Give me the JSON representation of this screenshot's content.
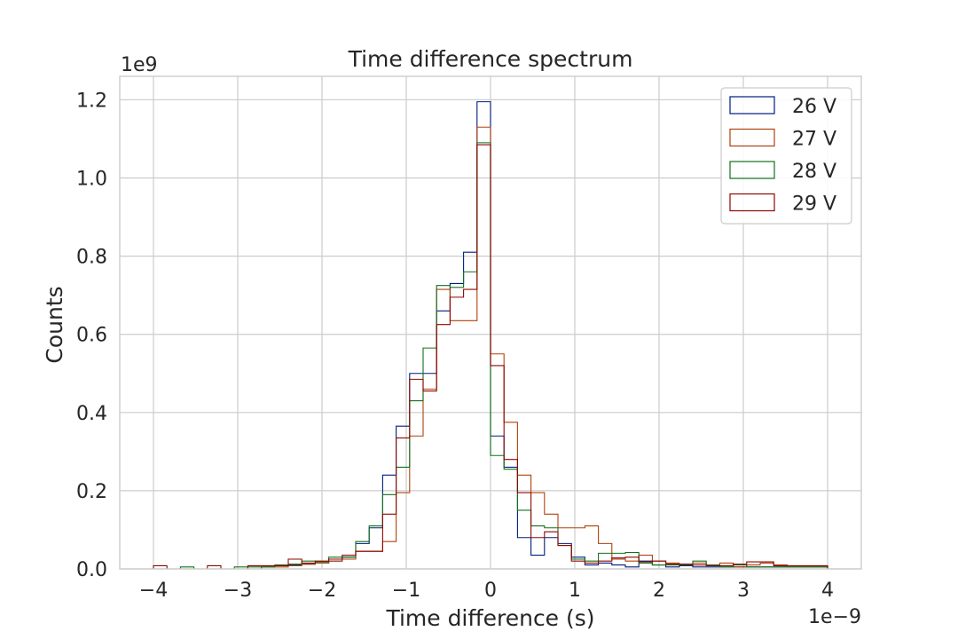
{
  "chart_data": {
    "type": "histogram",
    "title": "Time difference spectrum",
    "xlabel": "Time difference (s)",
    "ylabel": "Counts",
    "x_offset_label": "1e−9",
    "y_offset_label": "1e9",
    "xlim": [
      -4.4,
      4.4
    ],
    "ylim": [
      0,
      1.26
    ],
    "x_ticks": [
      -4,
      -3,
      -2,
      -1,
      0,
      1,
      2,
      3,
      4
    ],
    "x_tick_labels": [
      "−4",
      "−3",
      "−2",
      "−1",
      "0",
      "1",
      "2",
      "3",
      "4"
    ],
    "y_ticks": [
      0,
      0.2,
      0.4,
      0.6,
      0.8,
      1.0,
      1.2
    ],
    "y_tick_labels": [
      "0.0",
      "0.2",
      "0.4",
      "0.6",
      "0.8",
      "1.0",
      "1.2"
    ],
    "grid": true,
    "legend_position": "top-right",
    "bin_edges": [
      -4.0,
      -3.84,
      -3.68,
      -3.52,
      -3.36,
      -3.2,
      -3.04,
      -2.88,
      -2.72,
      -2.56,
      -2.4,
      -2.24,
      -2.08,
      -1.92,
      -1.76,
      -1.6,
      -1.44,
      -1.28,
      -1.12,
      -0.96,
      -0.8,
      -0.64,
      -0.48,
      -0.32,
      -0.16,
      0.0,
      0.16,
      0.32,
      0.48,
      0.64,
      0.8,
      0.96,
      1.12,
      1.28,
      1.44,
      1.6,
      1.76,
      1.92,
      2.08,
      2.24,
      2.4,
      2.56,
      2.72,
      2.88,
      3.04,
      3.2,
      3.36,
      3.52,
      3.68,
      3.84,
      4.0
    ],
    "series": [
      {
        "name": "26 V",
        "color": "#001c7f",
        "values": [
          0,
          0,
          0,
          0,
          0,
          0,
          0,
          0,
          0.005,
          0.008,
          0.01,
          0.012,
          0.015,
          0.02,
          0.03,
          0.065,
          0.105,
          0.24,
          0.365,
          0.5,
          0.5,
          0.66,
          0.73,
          0.81,
          1.195,
          0.34,
          0.26,
          0.08,
          0.035,
          0.08,
          0.065,
          0.03,
          0.01,
          0.015,
          0.01,
          0.005,
          0.02,
          0.01,
          0.005,
          0.008,
          0.005,
          0.005,
          0.005,
          0.005,
          0.005,
          0.005,
          0.005,
          0.005,
          0.005,
          0.005
        ]
      },
      {
        "name": "27 V",
        "color": "#b1400d",
        "values": [
          0,
          0,
          0,
          0,
          0,
          0,
          0,
          0,
          0.005,
          0.005,
          0.008,
          0.012,
          0.015,
          0.02,
          0.025,
          0.045,
          0.045,
          0.07,
          0.195,
          0.34,
          0.46,
          0.715,
          0.635,
          0.635,
          1.13,
          0.55,
          0.375,
          0.24,
          0.195,
          0.14,
          0.105,
          0.105,
          0.11,
          0.065,
          0.025,
          0.02,
          0.035,
          0.02,
          0.015,
          0.012,
          0.015,
          0.01,
          0.015,
          0.005,
          0.01,
          0.015,
          0.01,
          0.005,
          0.005,
          0.005
        ]
      },
      {
        "name": "28 V",
        "color": "#12711c",
        "values": [
          0,
          0,
          0.005,
          0,
          0,
          0,
          0.005,
          0.005,
          0.005,
          0.01,
          0.012,
          0.02,
          0.018,
          0.03,
          0.03,
          0.07,
          0.11,
          0.19,
          0.26,
          0.43,
          0.565,
          0.725,
          0.72,
          0.76,
          1.09,
          0.29,
          0.255,
          0.15,
          0.11,
          0.105,
          0.06,
          0.025,
          0.02,
          0.04,
          0.04,
          0.042,
          0.015,
          0.01,
          0.01,
          0.01,
          0.02,
          0.01,
          0.005,
          0.01,
          0.005,
          0.005,
          0.005,
          0.005,
          0.005,
          0.005
        ]
      },
      {
        "name": "29 V",
        "color": "#8c0800",
        "values": [
          0.008,
          0,
          0,
          0,
          0.008,
          0,
          0,
          0.008,
          0.008,
          0.008,
          0.025,
          0.015,
          0.02,
          0.025,
          0.035,
          0.045,
          0.045,
          0.14,
          0.335,
          0.485,
          0.455,
          0.625,
          0.695,
          0.715,
          1.085,
          0.52,
          0.28,
          0.195,
          0.08,
          0.095,
          0.06,
          0.02,
          0.015,
          0.02,
          0.028,
          0.03,
          0.018,
          0.02,
          0.012,
          0.012,
          0.01,
          0.008,
          0.008,
          0.012,
          0.018,
          0.018,
          0.008,
          0.008,
          0.008,
          0.008
        ]
      }
    ]
  }
}
